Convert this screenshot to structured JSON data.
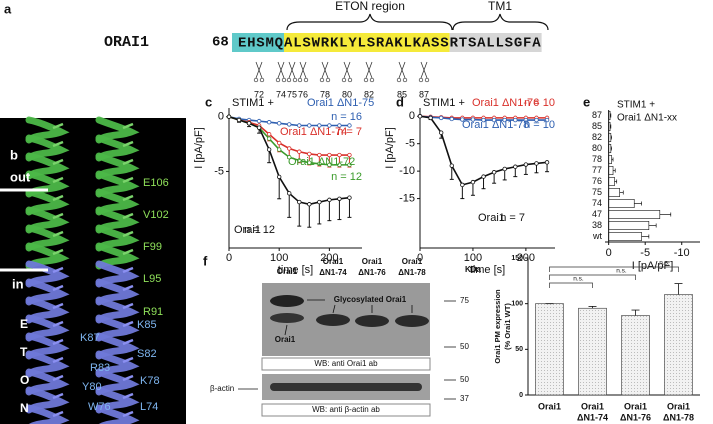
{
  "panel_a": {
    "label": "a",
    "protein": "ORAI1",
    "start": "68",
    "segments": [
      {
        "text": "EHSMQ",
        "color": "#5fc9c9"
      },
      {
        "text": "ALSWRKLYLSRAKLKASS",
        "color": "#f5ea3a"
      },
      {
        "text": "RTSALLSGFA",
        "color": "#d6d6d6"
      }
    ],
    "regions": [
      "ETON region",
      "TM1"
    ],
    "cut_sites": [
      72,
      74,
      75,
      76,
      78,
      80,
      82,
      85,
      87
    ]
  },
  "panel_b": {
    "label": "b",
    "out": "out",
    "in": "in",
    "eton_letters": [
      "E",
      "T",
      "O",
      "N"
    ],
    "upper_residues": [
      "E106",
      "V102",
      "F99",
      "L95",
      "R91"
    ],
    "lower_residues": [
      "K85",
      "K87",
      "S82",
      "R83",
      "K78",
      "Y80",
      "L74",
      "W76"
    ]
  },
  "panel_f": {
    "label": "f",
    "lanes": [
      [
        "Orai1"
      ],
      [
        "Orai1",
        "ΔN1-74"
      ],
      [
        "Orai1",
        "ΔN1-76"
      ],
      [
        "Orai1",
        "ΔN1-78"
      ]
    ],
    "unit": "KDa",
    "markers_upper": [
      "75",
      "50"
    ],
    "markers_lower": [
      "50",
      "37"
    ],
    "glyco": "Glycosylated Orai1",
    "orai1": "Orai1",
    "wb_upper": "WB: anti Orai1 ab",
    "actin": "β-actin",
    "wb_lower": "WB: anti β-actin ab"
  },
  "chart_data": [
    {
      "type": "line",
      "panel_label": "c",
      "subtitle": "STIM1 +",
      "xlabel": "time [s]",
      "ylabel": "I [pA/pF]",
      "x": [
        0,
        20,
        40,
        60,
        80,
        100,
        120,
        140,
        160,
        180,
        200,
        220,
        240
      ],
      "xlim": [
        0,
        265
      ],
      "xticks": [
        0,
        100,
        200
      ],
      "ylim": [
        -12,
        0.8
      ],
      "yticks": [
        0,
        -5
      ],
      "series": [
        {
          "name": "Orai1 ΔN1-75",
          "n": "n = 16",
          "color": "#2e5fb0",
          "values": [
            0,
            -0.2,
            -0.3,
            -0.4,
            -0.5,
            -0.6,
            -0.7,
            -0.8,
            -0.8,
            -0.8,
            -0.8,
            -0.8,
            -0.8
          ]
        },
        {
          "name": "Orai1 ΔN1-74",
          "n": "n = 7",
          "color": "#d9302a",
          "values": [
            0,
            -0.3,
            -0.5,
            -0.8,
            -1.6,
            -2.4,
            -2.9,
            -3.2,
            -3.4,
            -3.5,
            -3.5,
            -3.5,
            -3.5
          ],
          "errors": [
            0,
            0.1,
            0.2,
            0.3,
            0.6,
            0.8,
            0.9,
            1,
            1,
            1,
            1.1,
            1.1,
            1.1
          ]
        },
        {
          "name": "Orai1 ΔN1-72",
          "n": "n = 12",
          "color": "#3a9a2a",
          "values": [
            0,
            -0.3,
            -0.6,
            -1,
            -2,
            -3,
            -3.7,
            -4,
            -4.2,
            -4.3,
            -4.4,
            -4.4,
            -4.4
          ]
        },
        {
          "name": "Orai1",
          "n": "n = 12",
          "color": "#111111",
          "values": [
            0,
            -0.3,
            -0.6,
            -1,
            -3,
            -5.5,
            -7,
            -7.8,
            -8,
            -7.8,
            -7.6,
            -7.5,
            -7.4
          ],
          "errors": [
            0,
            0.2,
            0.3,
            0.5,
            1.2,
            2,
            2.2,
            2.2,
            2.1,
            2,
            1.9,
            1.9,
            1.8
          ]
        }
      ]
    },
    {
      "type": "line",
      "panel_label": "d",
      "subtitle": "STIM1 +",
      "xlabel": "time [s]",
      "ylabel": "I [pA/pF]",
      "x": [
        0,
        20,
        40,
        60,
        80,
        100,
        120,
        140,
        160,
        180,
        200,
        220,
        240
      ],
      "xlim": [
        0,
        255
      ],
      "xticks": [
        0,
        100,
        200
      ],
      "ylim": [
        -24,
        1.5
      ],
      "yticks": [
        0,
        -5,
        -10,
        -15
      ],
      "series": [
        {
          "name": "Orai1 ΔN1-76",
          "n": "n = 10",
          "color": "#d9302a",
          "values": [
            0,
            -0.1,
            -0.2,
            -0.3,
            -0.3,
            -0.3,
            -0.3,
            -0.3,
            -0.3,
            -0.3,
            -0.3,
            -0.3,
            -0.3
          ]
        },
        {
          "name": "Orai1 ΔN1-78",
          "n": "n = 10",
          "color": "#2e5fb0",
          "values": [
            0,
            -0.2,
            -0.3,
            -0.5,
            -0.6,
            -0.6,
            -0.7,
            -0.7,
            -0.7,
            -0.7,
            -0.7,
            -0.7,
            -0.7
          ]
        },
        {
          "name": "Orai1",
          "n": "n = 7",
          "color": "#111111",
          "values": [
            0,
            -0.3,
            -3,
            -9,
            -12.5,
            -12,
            -11,
            -10.2,
            -9.6,
            -9.2,
            -8.8,
            -8.6,
            -8.4
          ],
          "errors": [
            0,
            0.3,
            1,
            2.5,
            2.5,
            2.4,
            2.2,
            2,
            2,
            1.8,
            1.8,
            1.7,
            1.7
          ]
        }
      ]
    },
    {
      "type": "hbar",
      "panel_label": "e",
      "subtitle": [
        "STIM1 +",
        "Orai1 ΔN1-xx"
      ],
      "xlabel": "I [pA/pF]",
      "categories": [
        "87",
        "85",
        "82",
        "80",
        "78",
        "77",
        "76",
        "75",
        "74",
        "47",
        "38",
        "wt"
      ],
      "values": [
        -0.2,
        -0.2,
        -0.3,
        -0.3,
        -0.4,
        -0.6,
        -0.8,
        -1.5,
        -3.5,
        -7,
        -5.5,
        -4.5
      ],
      "errors": [
        0.1,
        0.1,
        0.1,
        0.1,
        0.2,
        0.3,
        0.3,
        0.5,
        1,
        1.5,
        1,
        1
      ],
      "color": "#ffffff",
      "xlim": [
        0.5,
        -12.5
      ],
      "xticks": [
        0,
        -5,
        -10
      ]
    },
    {
      "type": "bar",
      "ylabel": [
        "Orai1 PM expression",
        "(% Orai1 WT)"
      ],
      "categories": [
        [
          "Orai1"
        ],
        [
          "Orai1",
          "ΔN1-74"
        ],
        [
          "Orai1",
          "ΔN1-76"
        ],
        [
          "Orai1",
          "ΔN1-78"
        ]
      ],
      "values": [
        100,
        95,
        87,
        110
      ],
      "errors": [
        0,
        2,
        6,
        12
      ],
      "color": "#ececec",
      "ylim": [
        0,
        150
      ],
      "yticks": [
        0,
        50,
        100,
        150
      ],
      "annotations": [
        "n.s.",
        "n.s.",
        "n.s."
      ]
    }
  ]
}
